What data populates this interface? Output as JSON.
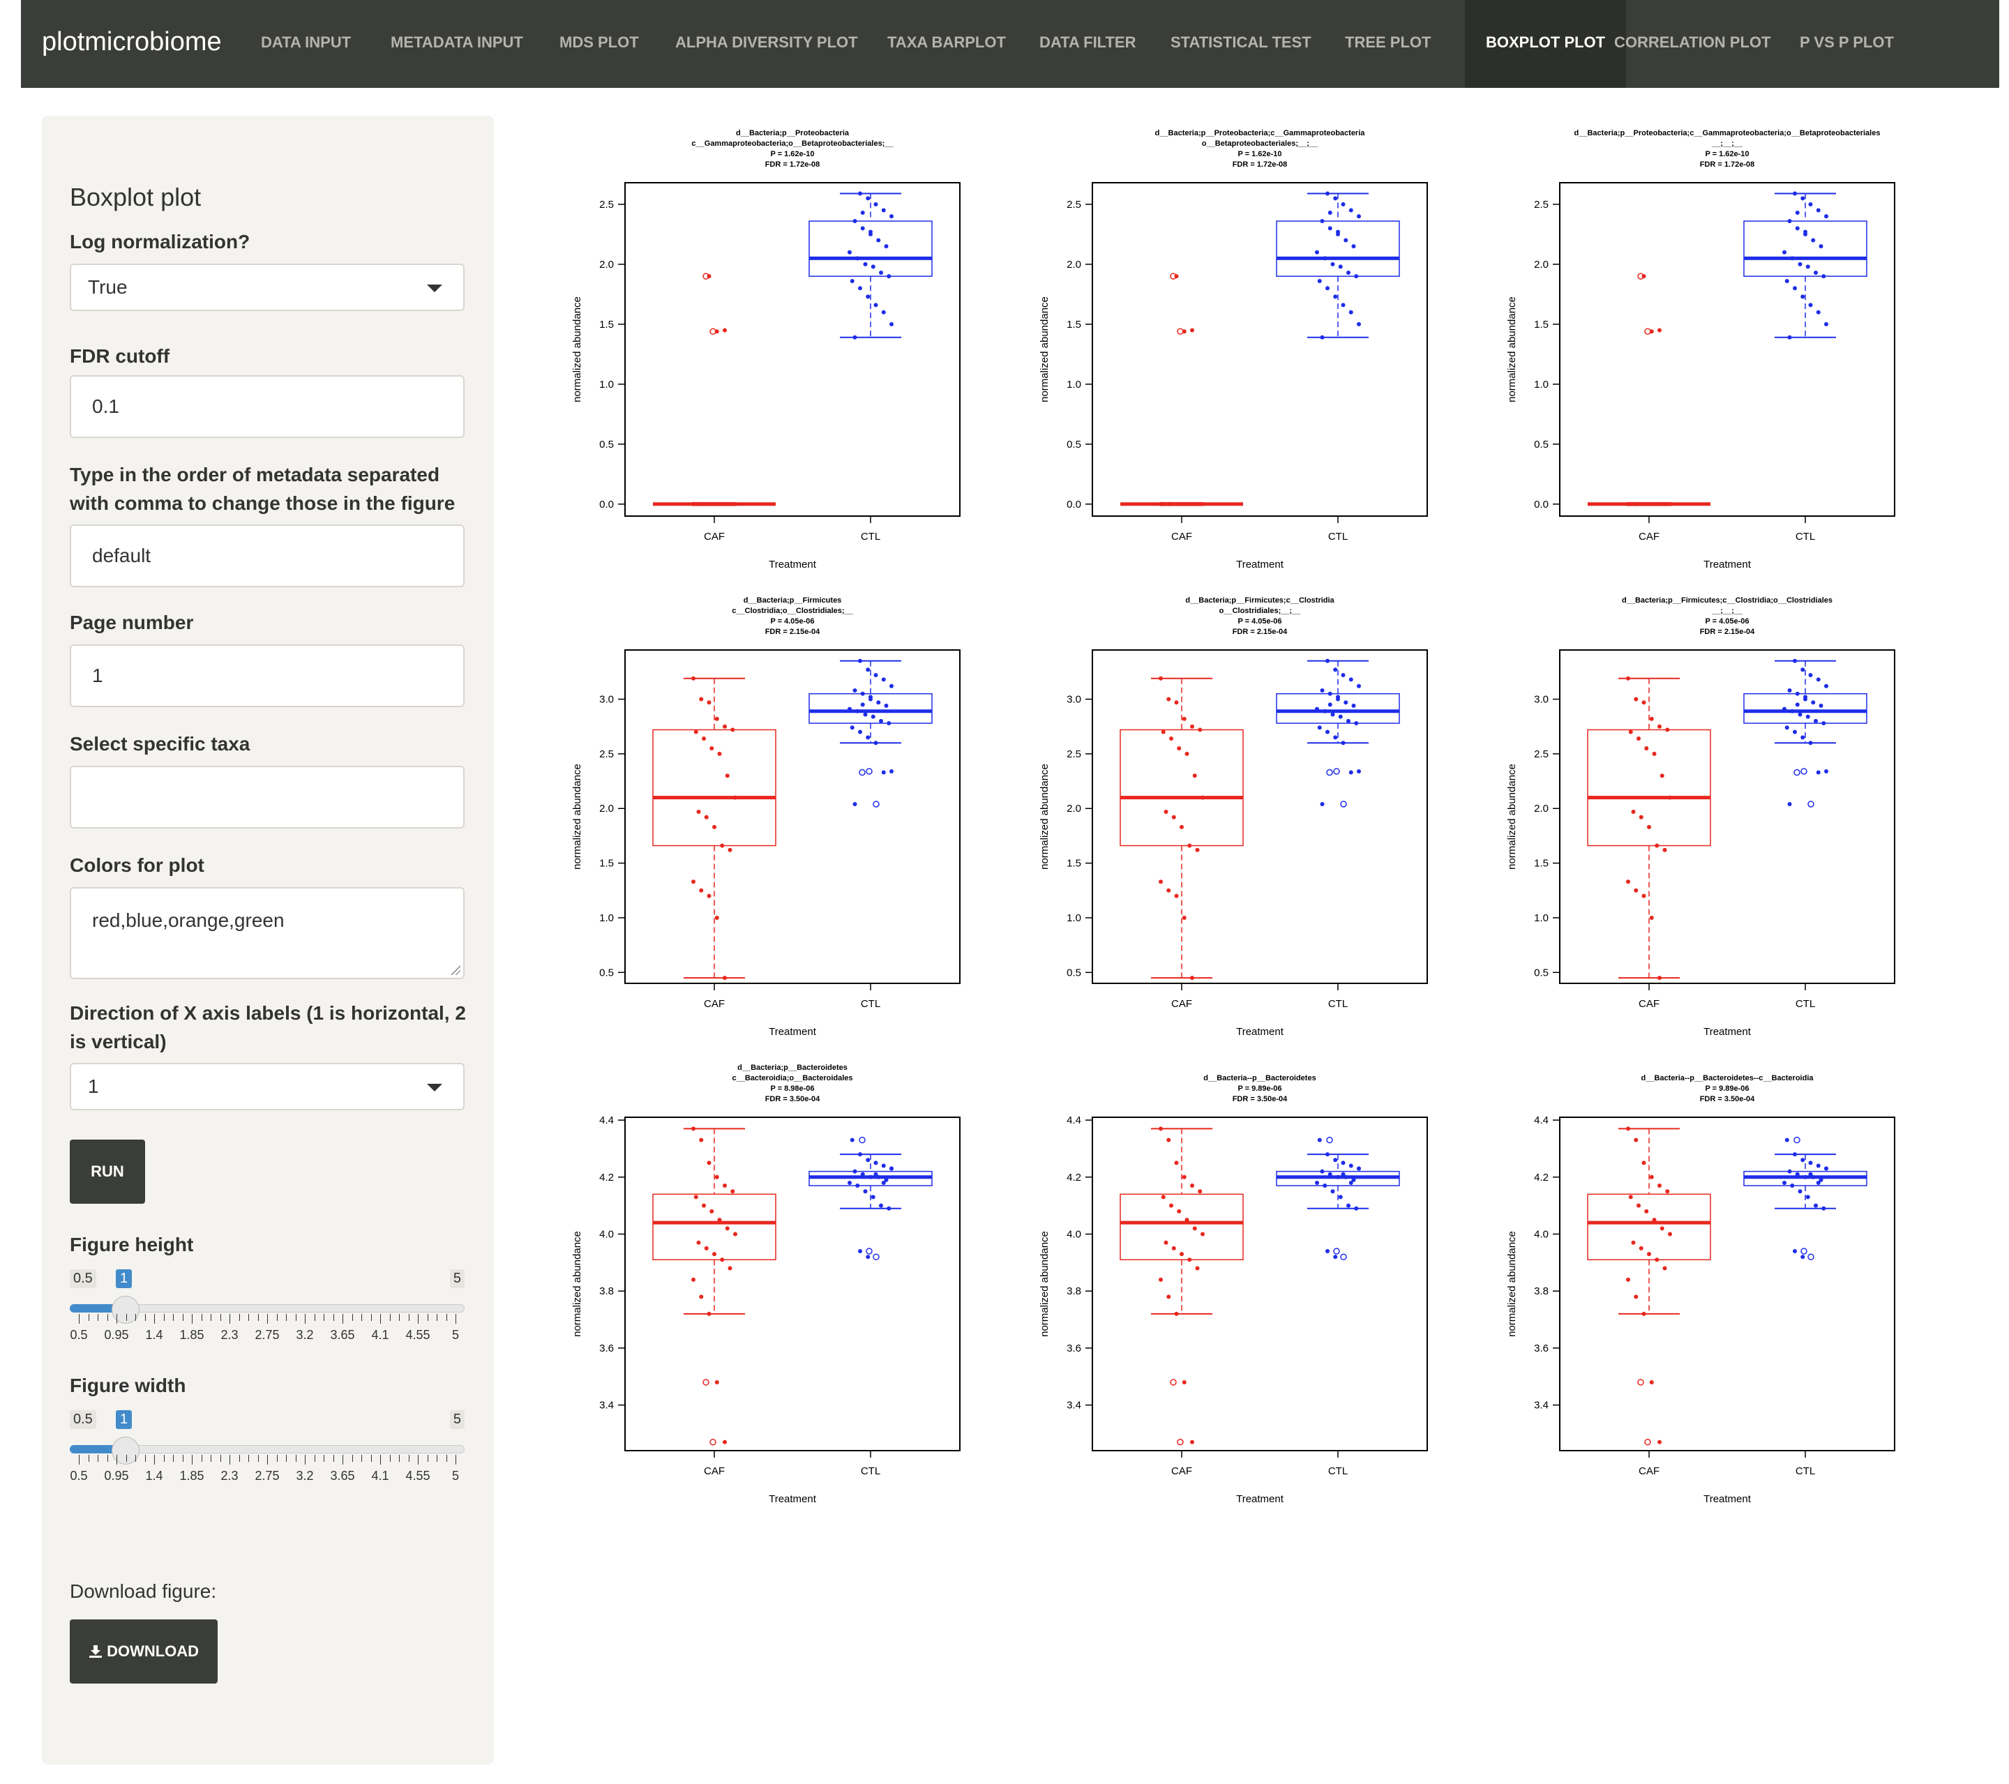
{
  "navbar": {
    "brand": "plotmicrobiome",
    "items": [
      {
        "label": "DATA INPUT",
        "active": false
      },
      {
        "label": "METADATA INPUT",
        "active": false
      },
      {
        "label": "MDS PLOT",
        "active": false
      },
      {
        "label": "ALPHA DIVERSITY PLOT",
        "active": false
      },
      {
        "label": "TAXA BARPLOT",
        "active": false
      },
      {
        "label": "DATA FILTER",
        "active": false
      },
      {
        "label": "STATISTICAL TEST",
        "active": false
      },
      {
        "label": "TREE PLOT",
        "active": false
      },
      {
        "label": "BOXPLOT PLOT",
        "active": true
      },
      {
        "label": "CORRELATION PLOT",
        "active": false
      },
      {
        "label": "P VS P PLOT",
        "active": false
      }
    ]
  },
  "sidebar": {
    "title": "Boxplot plot",
    "log_norm": {
      "label": "Log normalization?",
      "value": "True"
    },
    "fdr": {
      "label": "FDR cutoff",
      "value": "0.1"
    },
    "order": {
      "label": "Type in the order of metadata separated with comma to change those in the figure",
      "value": "default"
    },
    "page": {
      "label": "Page number",
      "value": "1"
    },
    "taxa": {
      "label": "Select specific taxa",
      "value": ""
    },
    "colors": {
      "label": "Colors for plot",
      "value": "red,blue,orange,green"
    },
    "direction": {
      "label": "Direction of X axis labels (1 is horizontal, 2 is vertical)",
      "value": "1"
    },
    "run_label": "RUN",
    "fig_height": {
      "label": "Figure height",
      "min": "0.5",
      "max": "5",
      "value": "1",
      "fraction": 0.111
    },
    "fig_width": {
      "label": "Figure width",
      "min": "0.5",
      "max": "5",
      "value": "1",
      "fraction": 0.111
    },
    "slider_ticks": [
      "0.5",
      "0.95",
      "1.4",
      "1.85",
      "2.3",
      "2.75",
      "3.2",
      "3.65",
      "4.1",
      "4.55",
      "5"
    ],
    "download_label": "Download figure:",
    "download_button": "DOWNLOAD"
  },
  "colors": {
    "caf": "#e8271e",
    "ctl": "#1e2de8",
    "navbar": "#3b3e38"
  },
  "chart_data": [
    {
      "type": "boxplot",
      "title": [
        "d__Bacteria;p__Proteobacteria",
        "c__Gammaproteobacteria;o__Betaproteobacteriales;__",
        "P = 1.62e-10",
        "FDR = 1.72e-08"
      ],
      "xlabel": "Treatment",
      "ylabel": "normalized abundance",
      "categories": [
        "CAF",
        "CTL"
      ],
      "ylim": [
        -0.1,
        2.68
      ],
      "yticks": [
        0.0,
        0.5,
        1.0,
        1.5,
        2.0,
        2.5
      ],
      "boxes": [
        {
          "q1": 0,
          "median": 0,
          "q3": 0,
          "whisker_low": 0,
          "whisker_high": 0,
          "outliers": [
            1.9,
            1.44
          ]
        },
        {
          "q1": 1.9,
          "median": 2.05,
          "q3": 2.36,
          "whisker_low": 1.39,
          "whisker_high": 2.59,
          "outliers": []
        }
      ],
      "points": [
        [
          0,
          0,
          0,
          0,
          0,
          0,
          0,
          0,
          0,
          0,
          0,
          0,
          0,
          0,
          0,
          0,
          0,
          0,
          0,
          1.9,
          1.44,
          1.45
        ],
        [
          2.59,
          2.55,
          2.5,
          2.45,
          2.4,
          2.36,
          2.3,
          2.25,
          2.2,
          2.15,
          2.1,
          2.05,
          2.0,
          1.98,
          1.93,
          1.9,
          1.86,
          1.8,
          1.73,
          1.66,
          1.6,
          1.5,
          1.39,
          2.43,
          2.27
        ]
      ]
    },
    {
      "type": "boxplot",
      "title": [
        "d__Bacteria;p__Proteobacteria;c__Gammaproteobacteria",
        "o__Betaproteobacteriales;__;__",
        "P = 1.62e-10",
        "FDR = 1.72e-08"
      ],
      "xlabel": "Treatment",
      "ylabel": "normalized abundance",
      "categories": [
        "CAF",
        "CTL"
      ],
      "ylim": [
        -0.1,
        2.68
      ],
      "yticks": [
        0.0,
        0.5,
        1.0,
        1.5,
        2.0,
        2.5
      ],
      "boxes": [
        {
          "q1": 0,
          "median": 0,
          "q3": 0,
          "whisker_low": 0,
          "whisker_high": 0,
          "outliers": [
            1.9,
            1.44
          ]
        },
        {
          "q1": 1.9,
          "median": 2.05,
          "q3": 2.36,
          "whisker_low": 1.39,
          "whisker_high": 2.59,
          "outliers": []
        }
      ],
      "points": [
        [
          0,
          0,
          0,
          0,
          0,
          0,
          0,
          0,
          0,
          0,
          0,
          0,
          0,
          0,
          0,
          0,
          0,
          0,
          0,
          1.9,
          1.44,
          1.45
        ],
        [
          2.59,
          2.55,
          2.5,
          2.45,
          2.4,
          2.36,
          2.3,
          2.25,
          2.2,
          2.15,
          2.1,
          2.05,
          2.0,
          1.98,
          1.93,
          1.9,
          1.86,
          1.8,
          1.73,
          1.66,
          1.6,
          1.5,
          1.39,
          2.43,
          2.27
        ]
      ]
    },
    {
      "type": "boxplot",
      "title": [
        "d__Bacteria;p__Proteobacteria;c__Gammaproteobacteria;o__Betaproteobacteriales",
        "__;__;__",
        "P = 1.62e-10",
        "FDR = 1.72e-08"
      ],
      "xlabel": "Treatment",
      "ylabel": "normalized abundance",
      "categories": [
        "CAF",
        "CTL"
      ],
      "ylim": [
        -0.1,
        2.68
      ],
      "yticks": [
        0.0,
        0.5,
        1.0,
        1.5,
        2.0,
        2.5
      ],
      "boxes": [
        {
          "q1": 0,
          "median": 0,
          "q3": 0,
          "whisker_low": 0,
          "whisker_high": 0,
          "outliers": [
            1.9,
            1.44
          ]
        },
        {
          "q1": 1.9,
          "median": 2.05,
          "q3": 2.36,
          "whisker_low": 1.39,
          "whisker_high": 2.59,
          "outliers": []
        }
      ],
      "points": [
        [
          0,
          0,
          0,
          0,
          0,
          0,
          0,
          0,
          0,
          0,
          0,
          0,
          0,
          0,
          0,
          0,
          0,
          0,
          0,
          1.9,
          1.44,
          1.45
        ],
        [
          2.59,
          2.55,
          2.5,
          2.45,
          2.4,
          2.36,
          2.3,
          2.25,
          2.2,
          2.15,
          2.1,
          2.05,
          2.0,
          1.98,
          1.93,
          1.9,
          1.86,
          1.8,
          1.73,
          1.66,
          1.6,
          1.5,
          1.39,
          2.43,
          2.27
        ]
      ]
    },
    {
      "type": "boxplot",
      "title": [
        "d__Bacteria;p__Firmicutes",
        "c__Clostridia;o__Clostridiales;__",
        "P = 4.05e-06",
        "FDR = 2.15e-04"
      ],
      "xlabel": "Treatment",
      "ylabel": "normalized abundance",
      "categories": [
        "CAF",
        "CTL"
      ],
      "ylim": [
        0.4,
        3.45
      ],
      "yticks": [
        0.5,
        1.0,
        1.5,
        2.0,
        2.5,
        3.0
      ],
      "boxes": [
        {
          "q1": 1.66,
          "median": 2.1,
          "q3": 2.72,
          "whisker_low": 0.45,
          "whisker_high": 3.19,
          "outliers": []
        },
        {
          "q1": 2.78,
          "median": 2.89,
          "q3": 3.05,
          "whisker_low": 2.6,
          "whisker_high": 3.35,
          "outliers": [
            2.33,
            2.34,
            2.04
          ]
        }
      ],
      "points": [
        [
          3.19,
          3.0,
          2.97,
          2.82,
          2.75,
          2.72,
          2.7,
          2.64,
          2.55,
          2.5,
          2.3,
          2.1,
          1.97,
          1.92,
          1.83,
          1.66,
          1.62,
          1.33,
          1.25,
          1.2,
          1.0,
          0.45
        ],
        [
          3.35,
          3.27,
          3.22,
          3.18,
          3.12,
          3.08,
          3.05,
          3.0,
          2.97,
          2.94,
          2.91,
          2.89,
          2.86,
          2.84,
          2.8,
          2.78,
          2.74,
          2.7,
          2.65,
          2.6,
          2.33,
          2.34,
          2.04,
          2.95,
          3.02
        ]
      ]
    },
    {
      "type": "boxplot",
      "title": [
        "d__Bacteria;p__Firmicutes;c__Clostridia",
        "o__Clostridiales;__;__",
        "P = 4.05e-06",
        "FDR = 2.15e-04"
      ],
      "xlabel": "Treatment",
      "ylabel": "normalized abundance",
      "categories": [
        "CAF",
        "CTL"
      ],
      "ylim": [
        0.4,
        3.45
      ],
      "yticks": [
        0.5,
        1.0,
        1.5,
        2.0,
        2.5,
        3.0
      ],
      "boxes": [
        {
          "q1": 1.66,
          "median": 2.1,
          "q3": 2.72,
          "whisker_low": 0.45,
          "whisker_high": 3.19,
          "outliers": []
        },
        {
          "q1": 2.78,
          "median": 2.89,
          "q3": 3.05,
          "whisker_low": 2.6,
          "whisker_high": 3.35,
          "outliers": [
            2.33,
            2.34,
            2.04
          ]
        }
      ],
      "points": [
        [
          3.19,
          3.0,
          2.97,
          2.82,
          2.75,
          2.72,
          2.7,
          2.64,
          2.55,
          2.5,
          2.3,
          2.1,
          1.97,
          1.92,
          1.83,
          1.66,
          1.62,
          1.33,
          1.25,
          1.2,
          1.0,
          0.45
        ],
        [
          3.35,
          3.27,
          3.22,
          3.18,
          3.12,
          3.08,
          3.05,
          3.0,
          2.97,
          2.94,
          2.91,
          2.89,
          2.86,
          2.84,
          2.8,
          2.78,
          2.74,
          2.7,
          2.65,
          2.6,
          2.33,
          2.34,
          2.04,
          2.95,
          3.02
        ]
      ]
    },
    {
      "type": "boxplot",
      "title": [
        "d__Bacteria;p__Firmicutes;c__Clostridia;o__Clostridiales",
        "__;__;__",
        "P = 4.05e-06",
        "FDR = 2.15e-04"
      ],
      "xlabel": "Treatment",
      "ylabel": "normalized abundance",
      "categories": [
        "CAF",
        "CTL"
      ],
      "ylim": [
        0.4,
        3.45
      ],
      "yticks": [
        0.5,
        1.0,
        1.5,
        2.0,
        2.5,
        3.0
      ],
      "boxes": [
        {
          "q1": 1.66,
          "median": 2.1,
          "q3": 2.72,
          "whisker_low": 0.45,
          "whisker_high": 3.19,
          "outliers": []
        },
        {
          "q1": 2.78,
          "median": 2.89,
          "q3": 3.05,
          "whisker_low": 2.6,
          "whisker_high": 3.35,
          "outliers": [
            2.33,
            2.34,
            2.04
          ]
        }
      ],
      "points": [
        [
          3.19,
          3.0,
          2.97,
          2.82,
          2.75,
          2.72,
          2.7,
          2.64,
          2.55,
          2.5,
          2.3,
          2.1,
          1.97,
          1.92,
          1.83,
          1.66,
          1.62,
          1.33,
          1.25,
          1.2,
          1.0,
          0.45
        ],
        [
          3.35,
          3.27,
          3.22,
          3.18,
          3.12,
          3.08,
          3.05,
          3.0,
          2.97,
          2.94,
          2.91,
          2.89,
          2.86,
          2.84,
          2.8,
          2.78,
          2.74,
          2.7,
          2.65,
          2.6,
          2.33,
          2.34,
          2.04,
          2.95,
          3.02
        ]
      ]
    },
    {
      "type": "boxplot",
      "title": [
        "d__Bacteria;p__Bacteroidetes",
        "c__Bacteroidia;o__Bacteroidales",
        "P = 8.98e-06",
        "FDR = 3.50e-04"
      ],
      "xlabel": "Treatment",
      "ylabel": "normalized abundance",
      "categories": [
        "CAF",
        "CTL"
      ],
      "ylim": [
        3.24,
        4.41
      ],
      "yticks": [
        3.4,
        3.6,
        3.8,
        4.0,
        4.2,
        4.4
      ],
      "boxes": [
        {
          "q1": 3.91,
          "median": 4.04,
          "q3": 4.14,
          "whisker_low": 3.72,
          "whisker_high": 4.37,
          "outliers": [
            3.48,
            3.27
          ]
        },
        {
          "q1": 4.17,
          "median": 4.2,
          "q3": 4.22,
          "whisker_low": 4.09,
          "whisker_high": 4.28,
          "outliers": [
            4.33,
            3.94,
            3.92
          ]
        }
      ],
      "points": [
        [
          4.37,
          4.33,
          4.25,
          4.2,
          4.17,
          4.15,
          4.13,
          4.1,
          4.08,
          4.05,
          4.02,
          4.0,
          3.97,
          3.95,
          3.93,
          3.91,
          3.88,
          3.84,
          3.78,
          3.72,
          3.48,
          3.27
        ],
        [
          4.28,
          4.26,
          4.25,
          4.24,
          4.23,
          4.22,
          4.21,
          4.2,
          4.2,
          4.19,
          4.18,
          4.17,
          4.15,
          4.13,
          4.1,
          4.09,
          4.33,
          3.94,
          3.92,
          4.21,
          4.18,
          4.23
        ]
      ]
    },
    {
      "type": "boxplot",
      "title": [
        "d__Bacteria--p__Bacteroidetes",
        "P = 9.89e-06",
        "FDR = 3.50e-04"
      ],
      "xlabel": "Treatment",
      "ylabel": "normalized abundance",
      "categories": [
        "CAF",
        "CTL"
      ],
      "ylim": [
        3.24,
        4.41
      ],
      "yticks": [
        3.4,
        3.6,
        3.8,
        4.0,
        4.2,
        4.4
      ],
      "boxes": [
        {
          "q1": 3.91,
          "median": 4.04,
          "q3": 4.14,
          "whisker_low": 3.72,
          "whisker_high": 4.37,
          "outliers": [
            3.48,
            3.27
          ]
        },
        {
          "q1": 4.17,
          "median": 4.2,
          "q3": 4.22,
          "whisker_low": 4.09,
          "whisker_high": 4.28,
          "outliers": [
            4.33,
            3.94,
            3.92
          ]
        }
      ],
      "points": [
        [
          4.37,
          4.33,
          4.25,
          4.2,
          4.17,
          4.15,
          4.13,
          4.1,
          4.08,
          4.05,
          4.02,
          4.0,
          3.97,
          3.95,
          3.93,
          3.91,
          3.88,
          3.84,
          3.78,
          3.72,
          3.48,
          3.27
        ],
        [
          4.28,
          4.26,
          4.25,
          4.24,
          4.23,
          4.22,
          4.21,
          4.2,
          4.2,
          4.19,
          4.18,
          4.17,
          4.15,
          4.13,
          4.1,
          4.09,
          4.33,
          3.94,
          3.92,
          4.21,
          4.18,
          4.23
        ]
      ]
    },
    {
      "type": "boxplot",
      "title": [
        "d__Bacteria--p__Bacteroidetes--c__Bacteroidia",
        "P = 9.89e-06",
        "FDR = 3.50e-04"
      ],
      "xlabel": "Treatment",
      "ylabel": "normalized abundance",
      "categories": [
        "CAF",
        "CTL"
      ],
      "ylim": [
        3.24,
        4.41
      ],
      "yticks": [
        3.4,
        3.6,
        3.8,
        4.0,
        4.2,
        4.4
      ],
      "boxes": [
        {
          "q1": 3.91,
          "median": 4.04,
          "q3": 4.14,
          "whisker_low": 3.72,
          "whisker_high": 4.37,
          "outliers": [
            3.48,
            3.27
          ]
        },
        {
          "q1": 4.17,
          "median": 4.2,
          "q3": 4.22,
          "whisker_low": 4.09,
          "whisker_high": 4.28,
          "outliers": [
            4.33,
            3.94,
            3.92
          ]
        }
      ],
      "points": [
        [
          4.37,
          4.33,
          4.25,
          4.2,
          4.17,
          4.15,
          4.13,
          4.1,
          4.08,
          4.05,
          4.02,
          4.0,
          3.97,
          3.95,
          3.93,
          3.91,
          3.88,
          3.84,
          3.78,
          3.72,
          3.48,
          3.27
        ],
        [
          4.28,
          4.26,
          4.25,
          4.24,
          4.23,
          4.22,
          4.21,
          4.2,
          4.2,
          4.19,
          4.18,
          4.17,
          4.15,
          4.13,
          4.1,
          4.09,
          4.33,
          3.94,
          3.92,
          4.21,
          4.18,
          4.23
        ]
      ]
    }
  ]
}
